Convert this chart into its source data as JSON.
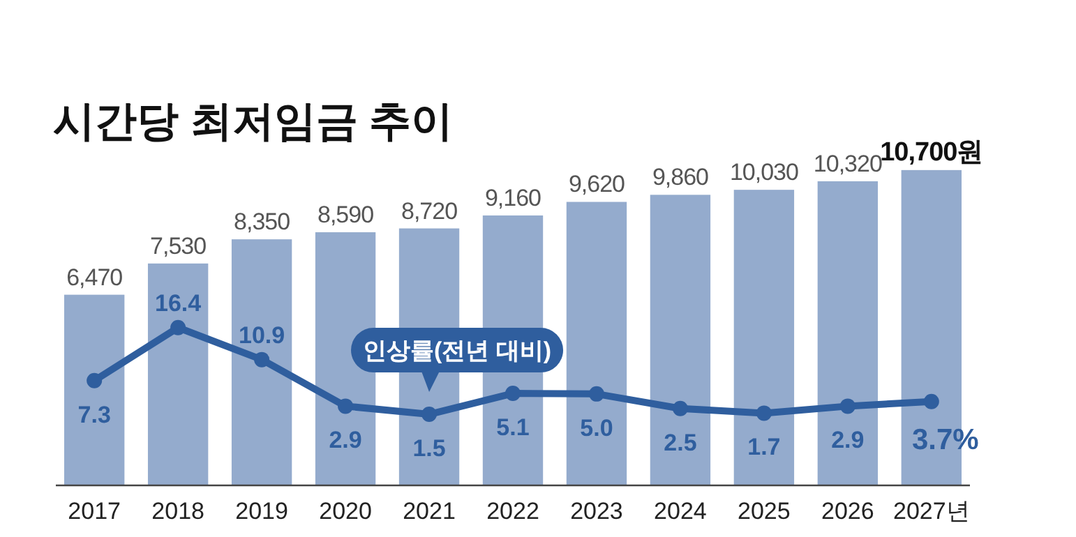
{
  "chart_data": {
    "type": "bar",
    "title": "시간당 최저임금 추이",
    "categories": [
      "2017",
      "2018",
      "2019",
      "2020",
      "2021",
      "2022",
      "2023",
      "2024",
      "2025",
      "2026",
      "2027년"
    ],
    "series": [
      {
        "color": "#94abcd",
        "values": [
          6470,
          7530,
          8350,
          8590,
          8720,
          9160,
          9620,
          9860,
          10030,
          10320,
          10700
        ],
        "value_labels": [
          "6,470",
          "7,530",
          "8,350",
          "8,590",
          "8,720",
          "9,160",
          "9,620",
          "9,860",
          "10,030",
          "10,320",
          "10,700원"
        ]
      },
      {
        "type": "line",
        "axis": "y2",
        "name": "인상률(전년 대비)",
        "color": "#2f5e9e",
        "marker": "circle",
        "values": [
          7.3,
          16.4,
          10.9,
          2.9,
          1.5,
          5.1,
          5.0,
          2.5,
          1.7,
          2.9,
          3.7
        ],
        "value_labels": [
          "7.3",
          "16.4",
          "10.9",
          "2.9",
          "1.5",
          "5.1",
          "5.0",
          "2.5",
          "1.7",
          "2.9",
          "3.7%"
        ]
      }
    ],
    "tick_labels": "x"
  }
}
